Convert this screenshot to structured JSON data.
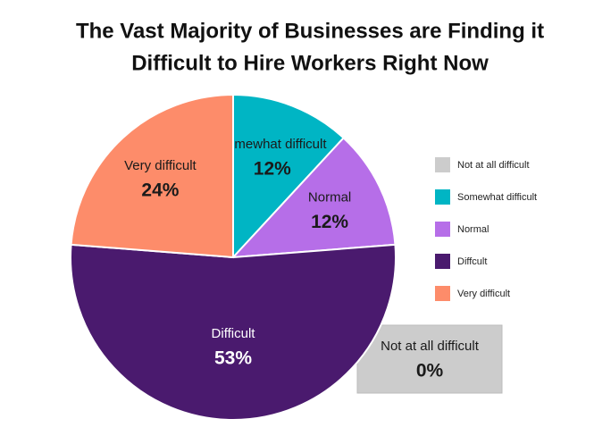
{
  "chart_data": {
    "type": "pie",
    "title": [
      "The Vast Majority of Businesses are Finding it",
      "Difficult to Hire Workers Right Now"
    ],
    "categories": [
      "Not at all difficult",
      "Somewhat difficult",
      "Normal",
      "Diffcult",
      "Very difficult"
    ],
    "slice_labels": [
      "Not at all difficult",
      "Somewhat difficult",
      "Normal",
      "Difficult",
      "Very difficult"
    ],
    "values": [
      0,
      12,
      12,
      53,
      24
    ],
    "value_labels": [
      "0%",
      "12%",
      "12%",
      "53%",
      "24%"
    ],
    "colors": [
      "#cccccc",
      "#00b5c4",
      "#b66ee8",
      "#4a1a6e",
      "#fd8c6a"
    ],
    "legend": "right"
  }
}
